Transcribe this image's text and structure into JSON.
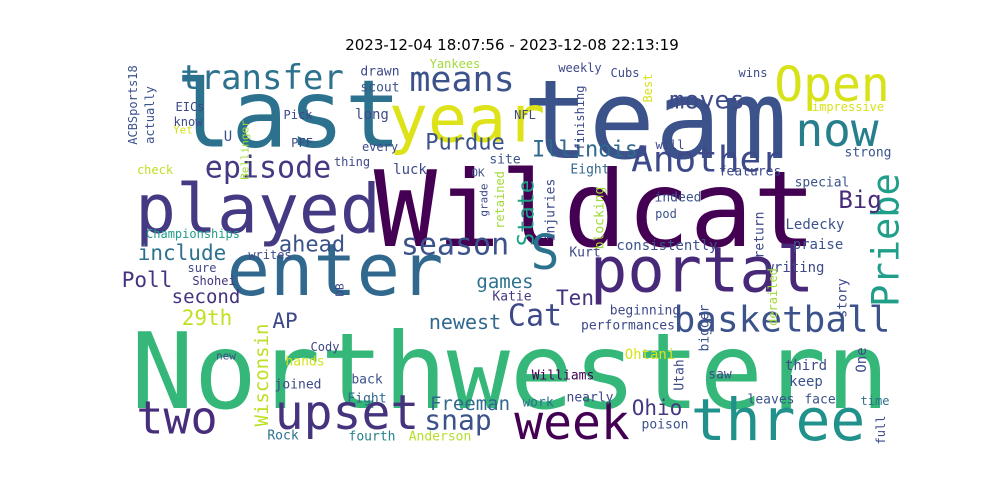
{
  "title": "2023-12-04 18:07:56 - 2023-12-08 22:13:19",
  "words": [
    {
      "text": "Northwestern",
      "color": "#35b779"
    },
    {
      "text": "Wildcat",
      "color": "#440154"
    },
    {
      "text": "team",
      "color": "#3b528b"
    },
    {
      "text": "last",
      "color": "#2c728e"
    },
    {
      "text": "enter",
      "color": "#31688e"
    },
    {
      "text": "portal",
      "color": "#482878"
    },
    {
      "text": "played",
      "color": "#443983"
    },
    {
      "text": "year",
      "color": "#dde318"
    },
    {
      "text": "three",
      "color": "#21918c"
    },
    {
      "text": "upset",
      "color": "#46337e"
    },
    {
      "text": "week",
      "color": "#440154"
    },
    {
      "text": "two",
      "color": "#472d7b"
    },
    {
      "text": "Open",
      "color": "#d8e219"
    },
    {
      "text": "now",
      "color": "#277f8e"
    },
    {
      "text": "transfer",
      "color": "#2c728e"
    },
    {
      "text": "means",
      "color": "#3b528b"
    },
    {
      "text": "episode",
      "color": "#443a83"
    },
    {
      "text": "Another",
      "color": "#3e4989"
    },
    {
      "text": "basketball",
      "color": "#3b528b"
    },
    {
      "text": "season",
      "color": "#3b528b"
    },
    {
      "text": "S",
      "color": "#2c728e"
    },
    {
      "text": "Priebe",
      "color": "#1f9e89"
    },
    {
      "text": "moves",
      "color": "#3e4a89"
    },
    {
      "text": "Purdue",
      "color": "#3b528b"
    },
    {
      "text": "Illinois",
      "color": "#31688e"
    },
    {
      "text": "Big",
      "color": "#472c7a"
    },
    {
      "text": "include",
      "color": "#2c728e"
    },
    {
      "text": "ahead",
      "color": "#3b528b"
    },
    {
      "text": "Poll",
      "color": "#46327e"
    },
    {
      "text": "second",
      "color": "#46327e"
    },
    {
      "text": "29th",
      "color": "#c2df23"
    },
    {
      "text": "AP",
      "color": "#3e4989"
    },
    {
      "text": "newest",
      "color": "#31688e"
    },
    {
      "text": "Cat",
      "color": "#3e4989"
    },
    {
      "text": "Ten",
      "color": "#46337e"
    },
    {
      "text": "games",
      "color": "#2c728e"
    },
    {
      "text": "State",
      "color": "#1fa187"
    },
    {
      "text": "Ohio",
      "color": "#453781"
    },
    {
      "text": "Freeman",
      "color": "#31688e"
    },
    {
      "text": "snap",
      "color": "#3b528b"
    },
    {
      "text": "Wisconsin",
      "color": "#bddf26"
    },
    {
      "text": "Rock",
      "color": "#2c728e"
    },
    {
      "text": "fourth",
      "color": "#26828e"
    },
    {
      "text": "Anderson",
      "color": "#b5de2b"
    },
    {
      "text": "poison",
      "color": "#3b528b"
    },
    {
      "text": "Williams",
      "color": "#440154"
    },
    {
      "text": "nearly",
      "color": "#3e4989"
    },
    {
      "text": "work",
      "color": "#2c728e"
    },
    {
      "text": "back",
      "color": "#3b528b"
    },
    {
      "text": "Fight",
      "color": "#31688e"
    },
    {
      "text": "joined",
      "color": "#3e4989"
    },
    {
      "text": "hands",
      "color": "#d2e21b"
    },
    {
      "text": "Cody",
      "color": "#3e4989"
    },
    {
      "text": "new",
      "color": "#3e4989"
    },
    {
      "text": "DB",
      "color": "#3e4989"
    },
    {
      "text": "sure",
      "color": "#3e4989"
    },
    {
      "text": "Shohei",
      "color": "#46337e"
    },
    {
      "text": "writes",
      "color": "#3e4989"
    },
    {
      "text": "Championships",
      "color": "#1f9e89"
    },
    {
      "text": "Katie",
      "color": "#443983"
    },
    {
      "text": "Kurt",
      "color": "#3e4989"
    },
    {
      "text": "consistently",
      "color": "#3b528b"
    },
    {
      "text": "beginning",
      "color": "#3e4989"
    },
    {
      "text": "performances",
      "color": "#3e4989"
    },
    {
      "text": "Ohtani",
      "color": "#d8e219"
    },
    {
      "text": "Utah",
      "color": "#3e4989"
    },
    {
      "text": "saw",
      "color": "#3e4989"
    },
    {
      "text": "bigger",
      "color": "#3b528b"
    },
    {
      "text": "third",
      "color": "#3e4989"
    },
    {
      "text": "keep",
      "color": "#3b528b"
    },
    {
      "text": "One",
      "color": "#3e4989"
    },
    {
      "text": "leaves",
      "color": "#3b528b"
    },
    {
      "text": "face",
      "color": "#3b528b"
    },
    {
      "text": "time",
      "color": "#2c728e"
    },
    {
      "text": "full",
      "color": "#3e4989"
    },
    {
      "text": "story",
      "color": "#3e4989"
    },
    {
      "text": "writing",
      "color": "#3e4989"
    },
    {
      "text": "praise",
      "color": "#3b528b"
    },
    {
      "text": "Ledecky",
      "color": "#3b528b"
    },
    {
      "text": "derailed",
      "color": "#a0da39"
    },
    {
      "text": "return",
      "color": "#3e4989"
    },
    {
      "text": "indeed",
      "color": "#3b528b"
    },
    {
      "text": "pod",
      "color": "#3b528b"
    },
    {
      "text": "blocking",
      "color": "#a0da39"
    },
    {
      "text": "Eight",
      "color": "#31688e"
    },
    {
      "text": "injuries",
      "color": "#3e4989"
    },
    {
      "text": "grade",
      "color": "#3e4989"
    },
    {
      "text": "retained",
      "color": "#a0da39"
    },
    {
      "text": "site",
      "color": "#3b528b"
    },
    {
      "text": "OK",
      "color": "#3b528b"
    },
    {
      "text": "luck",
      "color": "#3e4989"
    },
    {
      "text": "every",
      "color": "#3e4989"
    },
    {
      "text": "thing",
      "color": "#3e4989"
    },
    {
      "text": "PFF",
      "color": "#3e4989"
    },
    {
      "text": "Pick",
      "color": "#3e4989"
    },
    {
      "text": "long",
      "color": "#3e4989"
    },
    {
      "text": "drawn",
      "color": "#3e4989"
    },
    {
      "text": "scout",
      "color": "#3b528b"
    },
    {
      "text": "Yankees",
      "color": "#a0da39"
    },
    {
      "text": "NFL",
      "color": "#3e4989"
    },
    {
      "text": "finishing",
      "color": "#3e4989"
    },
    {
      "text": "weekly",
      "color": "#3e4989"
    },
    {
      "text": "Cubs",
      "color": "#3e4989"
    },
    {
      "text": "Best",
      "color": "#d8e219"
    },
    {
      "text": "will",
      "color": "#3e4989"
    },
    {
      "text": "features",
      "color": "#3e4989"
    },
    {
      "text": "special",
      "color": "#3b528b"
    },
    {
      "text": "strong",
      "color": "#3b528b"
    },
    {
      "text": "wins",
      "color": "#3e4989"
    },
    {
      "text": "impressive",
      "color": "#d8e219"
    },
    {
      "text": "Bellinger",
      "color": "#a0da39"
    },
    {
      "text": "U",
      "color": "#3b528b"
    },
    {
      "text": "EICs",
      "color": "#3e4989"
    },
    {
      "text": "know",
      "color": "#3e4989"
    },
    {
      "text": "actually",
      "color": "#3b528b"
    },
    {
      "text": "Yet",
      "color": "#d8e219"
    },
    {
      "text": "ACBSports18",
      "color": "#3b528b"
    },
    {
      "text": "check",
      "color": "#c2df23"
    }
  ]
}
